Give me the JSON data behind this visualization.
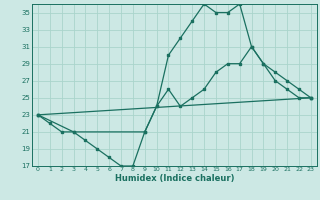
{
  "xlabel": "Humidex (Indice chaleur)",
  "bg_color": "#cce8e4",
  "grid_color": "#aad4cc",
  "line_color": "#1a7060",
  "xlim": [
    -0.5,
    23.5
  ],
  "ylim": [
    17,
    36
  ],
  "yticks": [
    17,
    19,
    21,
    23,
    25,
    27,
    29,
    31,
    33,
    35
  ],
  "xticks": [
    0,
    1,
    2,
    3,
    4,
    5,
    6,
    7,
    8,
    9,
    10,
    11,
    12,
    13,
    14,
    15,
    16,
    17,
    18,
    19,
    20,
    21,
    22,
    23
  ],
  "line1_x": [
    0,
    1,
    2,
    3,
    4,
    5,
    6,
    7,
    8,
    9,
    10,
    11,
    12,
    13,
    14,
    15,
    16,
    17,
    18,
    19,
    20,
    21,
    22,
    23
  ],
  "line1_y": [
    23,
    22,
    21,
    21,
    20,
    19,
    18,
    17,
    17,
    21,
    24,
    30,
    32,
    34,
    36,
    35,
    35,
    36,
    31,
    29,
    27,
    26,
    25,
    25
  ],
  "line2_x": [
    0,
    3,
    9,
    10,
    11,
    12,
    13,
    14,
    15,
    16,
    17,
    18,
    19,
    20,
    21,
    22,
    23
  ],
  "line2_y": [
    23,
    21,
    21,
    24,
    26,
    24,
    25,
    26,
    28,
    29,
    29,
    31,
    29,
    28,
    27,
    26,
    25
  ],
  "line3_x": [
    0,
    23
  ],
  "line3_y": [
    23,
    25
  ]
}
